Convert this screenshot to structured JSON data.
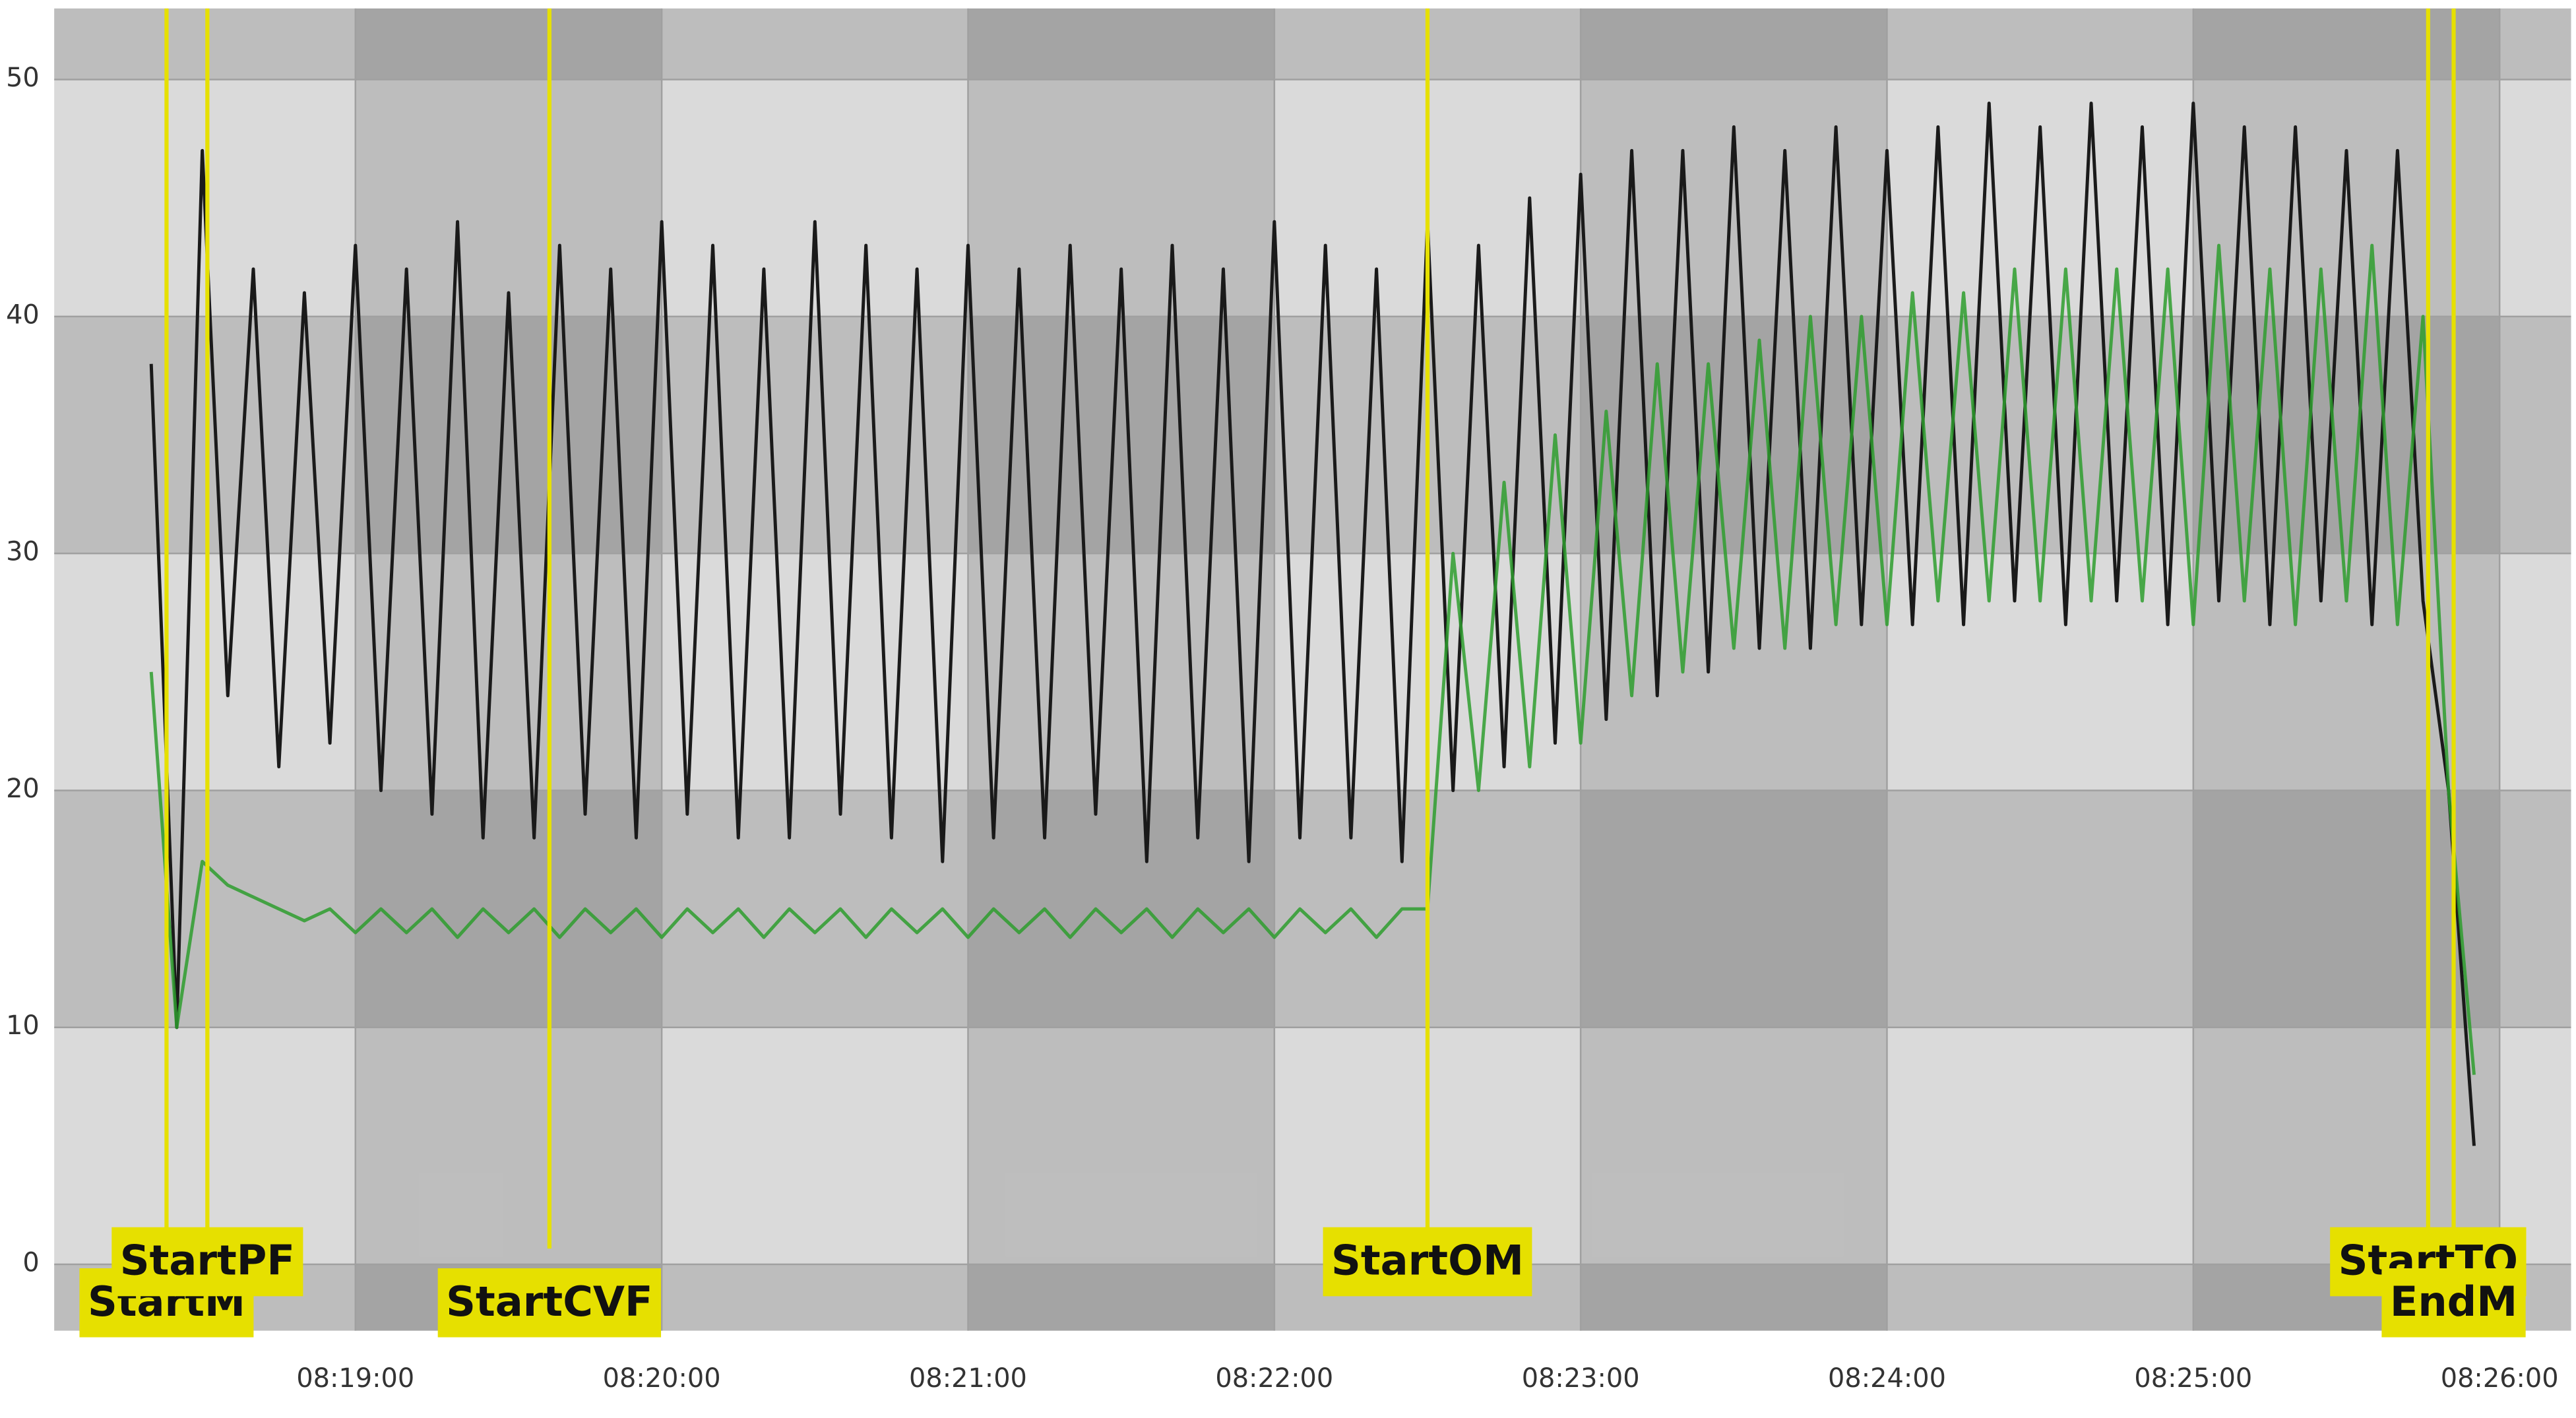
{
  "chart_data": {
    "type": "line",
    "x": [
      "08:18:20",
      "08:18:25",
      "08:18:30",
      "08:18:35",
      "08:18:40",
      "08:18:45",
      "08:18:50",
      "08:18:55",
      "08:19:00",
      "08:19:05",
      "08:19:10",
      "08:19:15",
      "08:19:20",
      "08:19:25",
      "08:19:30",
      "08:19:35",
      "08:19:40",
      "08:19:45",
      "08:19:50",
      "08:19:55",
      "08:20:00",
      "08:20:05",
      "08:20:10",
      "08:20:15",
      "08:20:20",
      "08:20:25",
      "08:20:30",
      "08:20:35",
      "08:20:40",
      "08:20:45",
      "08:20:50",
      "08:20:55",
      "08:21:00",
      "08:21:05",
      "08:21:10",
      "08:21:15",
      "08:21:20",
      "08:21:25",
      "08:21:30",
      "08:21:35",
      "08:21:40",
      "08:21:45",
      "08:21:50",
      "08:21:55",
      "08:22:00",
      "08:22:05",
      "08:22:10",
      "08:22:15",
      "08:22:20",
      "08:22:25",
      "08:22:30",
      "08:22:35",
      "08:22:40",
      "08:22:45",
      "08:22:50",
      "08:22:55",
      "08:23:00",
      "08:23:05",
      "08:23:10",
      "08:23:15",
      "08:23:20",
      "08:23:25",
      "08:23:30",
      "08:23:35",
      "08:23:40",
      "08:23:45",
      "08:23:50",
      "08:23:55",
      "08:24:00",
      "08:24:05",
      "08:24:10",
      "08:24:15",
      "08:24:20",
      "08:24:25",
      "08:24:30",
      "08:24:35",
      "08:24:40",
      "08:24:45",
      "08:24:50",
      "08:24:55",
      "08:25:00",
      "08:25:05",
      "08:25:10",
      "08:25:15",
      "08:25:20",
      "08:25:25",
      "08:25:30",
      "08:25:35",
      "08:25:40",
      "08:25:45",
      "08:25:50",
      "08:25:55"
    ],
    "series": [
      {
        "color": "#1a1a1a",
        "values": [
          38,
          10,
          47,
          24,
          42,
          21,
          41,
          22,
          43,
          20,
          42,
          19,
          44,
          18,
          41,
          18,
          43,
          19,
          42,
          18,
          44,
          19,
          43,
          18,
          42,
          18,
          44,
          19,
          43,
          18,
          42,
          17,
          43,
          18,
          42,
          18,
          43,
          19,
          42,
          17,
          43,
          18,
          42,
          17,
          44,
          18,
          43,
          18,
          42,
          17,
          44,
          20,
          43,
          21,
          45,
          22,
          46,
          23,
          47,
          24,
          47,
          25,
          48,
          26,
          47,
          26,
          48,
          27,
          47,
          27,
          48,
          27,
          49,
          28,
          48,
          27,
          49,
          28,
          48,
          27,
          49,
          28,
          48,
          27,
          48,
          28,
          47,
          27,
          47,
          28,
          20,
          5
        ]
      },
      {
        "color": "#2e9e2e",
        "values": [
          25,
          10,
          17,
          16,
          15.5,
          15,
          14.5,
          15,
          14,
          15,
          14,
          15,
          13.8,
          15,
          14,
          15,
          13.8,
          15,
          14,
          15,
          13.8,
          15,
          14,
          15,
          13.8,
          15,
          14,
          15,
          13.8,
          15,
          14,
          15,
          13.8,
          15,
          14,
          15,
          13.8,
          15,
          14,
          15,
          13.8,
          15,
          14,
          15,
          13.8,
          15,
          14,
          15,
          13.8,
          15,
          15,
          30,
          20,
          33,
          21,
          35,
          22,
          36,
          24,
          38,
          25,
          38,
          26,
          39,
          26,
          40,
          27,
          40,
          27,
          41,
          28,
          41,
          28,
          42,
          28,
          42,
          28,
          42,
          28,
          42,
          27,
          43,
          28,
          42,
          27,
          42,
          28,
          43,
          27,
          40,
          20,
          8
        ]
      }
    ],
    "xlim": [
      "08:18:01",
      "08:26:14"
    ],
    "xticks": [
      "08:19:00",
      "08:20:00",
      "08:21:00",
      "08:22:00",
      "08:23:00",
      "08:24:00",
      "08:25:00",
      "08:26:00"
    ],
    "ylim": [
      -2.8,
      53
    ],
    "yticks": [
      0,
      10,
      20,
      30,
      40,
      50
    ],
    "grid": true,
    "markers": [
      {
        "label": "StartM",
        "x": "08:18:23"
      },
      {
        "label": "StartPF",
        "x": "08:18:31"
      },
      {
        "label": "StartCVF",
        "x": "08:19:38"
      },
      {
        "label": "StartOM",
        "x": "08:22:30"
      },
      {
        "label": "StartTO",
        "x": "08:25:46"
      },
      {
        "label": "EndM",
        "x": "08:25:51"
      }
    ],
    "marker_color": "#e6e000"
  }
}
